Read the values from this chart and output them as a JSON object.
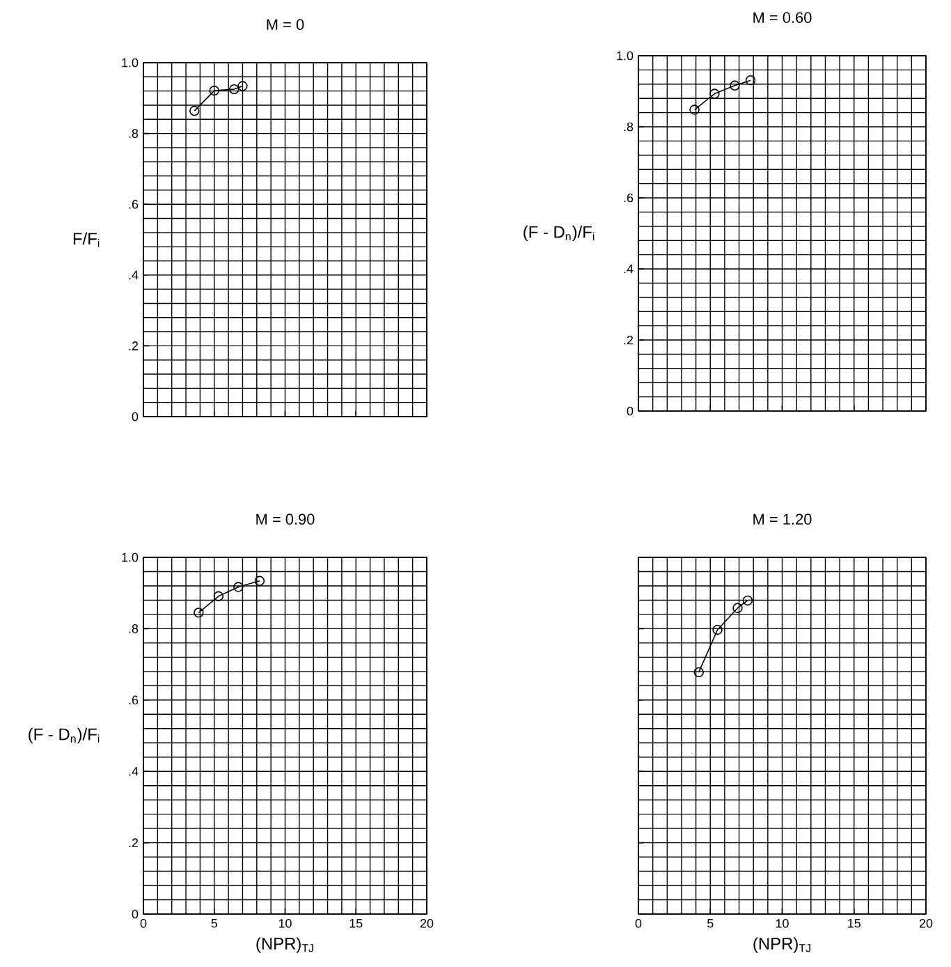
{
  "chart_data": [
    {
      "type": "line",
      "title": "M = 0",
      "ylabel": "F/F$_{i}$",
      "x": [
        3.6,
        5.0,
        6.4,
        7.0
      ],
      "values": [
        0.864,
        0.921,
        0.925,
        0.934
      ],
      "color": "#000000",
      "marker": "circle",
      "line_style": "solid",
      "grid": true,
      "xlim": [
        0,
        20
      ],
      "ylim": [
        0,
        1
      ],
      "xticks": [
        {
          "value": 0,
          "label": null
        },
        {
          "value": 5,
          "label": null
        },
        {
          "value": 10,
          "label": null
        },
        {
          "value": 15,
          "label": null
        },
        {
          "value": 20,
          "label": null
        }
      ],
      "yticks": [
        0,
        {
          "value": 0.2,
          "label": ".2"
        },
        {
          "value": 0.4,
          "label": ".4"
        },
        {
          "value": 0.6,
          "label": ".6"
        },
        {
          "value": 0.8,
          "label": ".8"
        },
        {
          "value": 1,
          "label": "1.0"
        }
      ],
      "tick_labels": "y"
    },
    {
      "type": "line",
      "title": "M = 0.60",
      "ylabel": "(F - D$_{n}$)/F$_{i}$",
      "x": [
        3.9,
        5.3,
        6.7,
        7.8
      ],
      "values": [
        0.848,
        0.893,
        0.916,
        0.931
      ],
      "color": "#000000",
      "marker": "circle",
      "line_style": "solid",
      "grid": true,
      "xlim": [
        0,
        20
      ],
      "ylim": [
        0,
        1
      ],
      "xticks": [
        {
          "value": 0,
          "label": null
        },
        {
          "value": 5,
          "label": null
        },
        {
          "value": 10,
          "label": null
        },
        {
          "value": 15,
          "label": null
        },
        {
          "value": 20,
          "label": null
        }
      ],
      "yticks": [
        0,
        {
          "value": 0.2,
          "label": ".2"
        },
        {
          "value": 0.4,
          "label": ".4"
        },
        {
          "value": 0.6,
          "label": ".6"
        },
        {
          "value": 0.8,
          "label": ".8"
        },
        {
          "value": 1,
          "label": "1.0"
        }
      ],
      "tick_labels": "y"
    },
    {
      "type": "line",
      "title": "M = 0.90",
      "ylabel": "(F - D$_{n}$)/F$_{i}$",
      "xlabel": "(NPR)$_{TJ}$",
      "x": [
        3.9,
        5.3,
        6.7,
        8.2
      ],
      "values": [
        0.845,
        0.891,
        0.917,
        0.934
      ],
      "color": "#000000",
      "marker": "circle",
      "line_style": "solid",
      "grid": true,
      "xlim": [
        0,
        20
      ],
      "ylim": [
        0,
        1
      ],
      "xticks": [
        0,
        5,
        10,
        15,
        20
      ],
      "yticks": [
        0,
        {
          "value": 0.2,
          "label": ".2"
        },
        {
          "value": 0.4,
          "label": ".4"
        },
        {
          "value": 0.6,
          "label": ".6"
        },
        {
          "value": 0.8,
          "label": ".8"
        },
        {
          "value": 1,
          "label": "1.0"
        }
      ]
    },
    {
      "type": "line",
      "title": "M = 1.20",
      "xlabel": "(NPR)$_{TJ}$",
      "x": [
        4.2,
        5.5,
        6.9,
        7.6
      ],
      "values": [
        0.678,
        0.797,
        0.858,
        0.879
      ],
      "color": "#000000",
      "marker": "circle",
      "line_style": "solid",
      "grid": true,
      "xlim": [
        0,
        20
      ],
      "ylim": [
        0,
        1
      ],
      "xticks": [
        0,
        5,
        10,
        15,
        20
      ],
      "yticks": [
        {
          "value": 0,
          "label": null
        },
        {
          "value": 0.2,
          "label": null
        },
        {
          "value": 0.4,
          "label": null
        },
        {
          "value": 0.6,
          "label": null
        },
        {
          "value": 0.8,
          "label": null
        },
        {
          "value": 1,
          "label": null
        }
      ],
      "tick_labels": "x"
    }
  ]
}
